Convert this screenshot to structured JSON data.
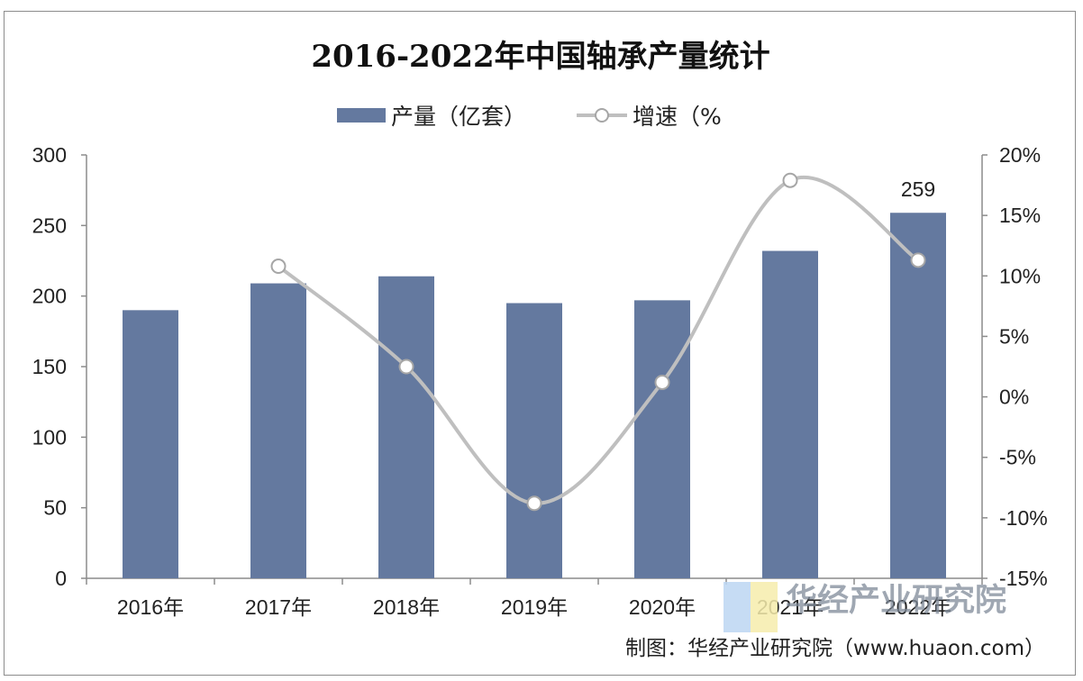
{
  "chart_data": {
    "type": "bar",
    "title": "2016-2022年中国轴承产量统计",
    "categories": [
      "2016年",
      "2017年",
      "2018年",
      "2019年",
      "2020年",
      "2021年",
      "2022年"
    ],
    "series": [
      {
        "name": "产量（亿套）",
        "type": "bar",
        "axis": "left",
        "color": "#64799f",
        "values": [
          190,
          209,
          214,
          195,
          197,
          232,
          259
        ]
      },
      {
        "name": "增速（%",
        "type": "line",
        "axis": "right",
        "color": "#bfbfbf",
        "values": [
          null,
          10.8,
          2.5,
          -8.8,
          1.2,
          17.9,
          11.3
        ]
      }
    ],
    "data_labels": [
      {
        "series": 0,
        "index": 6,
        "text": "259"
      }
    ],
    "ylim_left": [
      0,
      300
    ],
    "yticks_left": [
      "0",
      "50",
      "100",
      "150",
      "200",
      "250",
      "300"
    ],
    "ylim_right": [
      -15,
      20
    ],
    "yticks_right": [
      "-15%",
      "-10%",
      "-5%",
      "0%",
      "5%",
      "10%",
      "15%",
      "20%"
    ],
    "legend_position": "top",
    "grid": false
  },
  "source": "制图：华经产业研究院（www.huaon.com）",
  "watermark": {
    "cn": "华经产业研究院",
    "en": "h u a o n . c o m"
  }
}
